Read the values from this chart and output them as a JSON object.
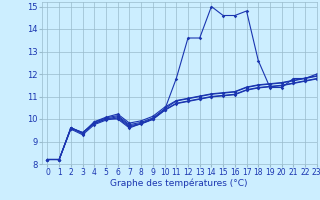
{
  "xlabel": "Graphe des températures (°C)",
  "bg_color": "#cceeff",
  "line_color": "#1a35b0",
  "grid_color": "#99bbcc",
  "xlim": [
    -0.5,
    23
  ],
  "ylim": [
    8,
    15.2
  ],
  "yticks": [
    8,
    9,
    10,
    11,
    12,
    13,
    14,
    15
  ],
  "xticks": [
    0,
    1,
    2,
    3,
    4,
    5,
    6,
    7,
    8,
    9,
    10,
    11,
    12,
    13,
    14,
    15,
    16,
    17,
    18,
    19,
    20,
    21,
    22,
    23
  ],
  "series": [
    [
      8.2,
      8.2,
      9.6,
      9.4,
      9.8,
      10.0,
      10.0,
      9.6,
      9.8,
      10.0,
      10.4,
      11.8,
      13.6,
      13.6,
      15.0,
      14.6,
      14.6,
      14.8,
      12.6,
      11.4,
      11.4,
      11.8,
      11.8,
      12.0
    ],
    [
      8.2,
      8.2,
      9.6,
      9.35,
      9.85,
      10.05,
      10.15,
      9.75,
      9.85,
      10.05,
      10.45,
      10.8,
      10.9,
      11.0,
      11.1,
      11.15,
      11.2,
      11.4,
      11.5,
      11.55,
      11.6,
      11.7,
      11.8,
      11.9
    ],
    [
      8.2,
      8.2,
      9.55,
      9.3,
      9.75,
      9.95,
      10.05,
      9.65,
      9.78,
      9.98,
      10.38,
      10.68,
      10.78,
      10.88,
      10.98,
      11.03,
      11.08,
      11.28,
      11.38,
      11.43,
      11.48,
      11.58,
      11.68,
      11.78
    ],
    [
      8.2,
      8.2,
      9.62,
      9.38,
      9.88,
      10.08,
      10.22,
      9.82,
      9.92,
      10.12,
      10.52,
      10.82,
      10.92,
      11.02,
      11.12,
      11.17,
      11.22,
      11.42,
      11.52,
      11.57,
      11.62,
      11.72,
      11.82,
      11.92
    ],
    [
      8.2,
      8.2,
      9.6,
      9.4,
      9.8,
      10.0,
      10.1,
      9.7,
      9.8,
      10.0,
      10.4,
      10.7,
      10.8,
      10.9,
      11.0,
      11.05,
      11.1,
      11.3,
      11.4,
      11.45,
      11.5,
      11.6,
      11.7,
      11.8
    ]
  ]
}
